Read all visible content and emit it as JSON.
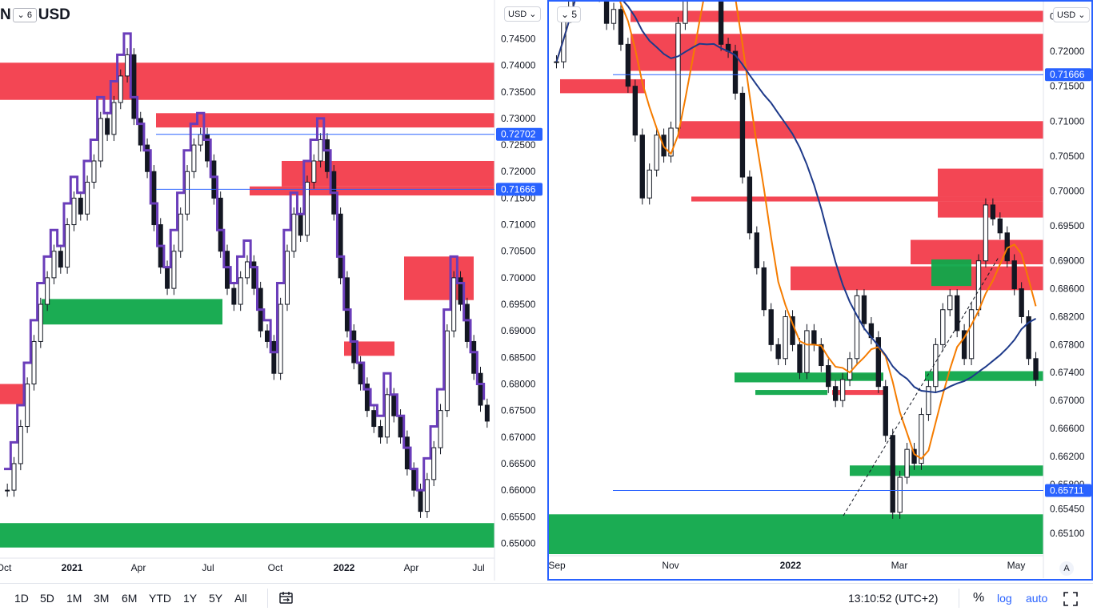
{
  "left_chart": {
    "symbol_text": "N",
    "symbol_suffix": "USD",
    "interval_badge": "6",
    "currency_chip": "USD",
    "price_ticks": [
      "0.74500",
      "0.74000",
      "0.73500",
      "0.73000",
      "0.72500",
      "0.72000",
      "0.71500",
      "0.71000",
      "0.70500",
      "0.70000",
      "0.69500",
      "0.69000",
      "0.68500",
      "0.68000",
      "0.67500",
      "0.67000",
      "0.66500",
      "0.66000",
      "0.65500",
      "0.65000"
    ],
    "time_ticks": [
      "Oct",
      "2021",
      "Apr",
      "Jul",
      "Oct",
      "2022",
      "Apr",
      "Jul"
    ],
    "price_labels": [
      {
        "text": "0.72702",
        "value": 0.72702,
        "color": "#2962ff"
      },
      {
        "text": "0.71666",
        "value": 0.71666,
        "color": "#2962ff"
      }
    ]
  },
  "right_chart": {
    "interval_badge": "5",
    "currency_chip": "USD",
    "price_ticks": [
      "0.72500",
      "0.72000",
      "0.71500",
      "0.71000",
      "0.70500",
      "0.70000",
      "0.69500",
      "0.69000",
      "0.68600",
      "0.68200",
      "0.67800",
      "0.67400",
      "0.67000",
      "0.66600",
      "0.66200",
      "0.65800",
      "0.65450",
      "0.65100"
    ],
    "time_ticks": [
      "Sep",
      "Nov",
      "2022",
      "Mar",
      "May"
    ],
    "price_labels": [
      {
        "text": "0.71666",
        "value": 0.71666,
        "color": "#2962ff"
      },
      {
        "text": "0.65711",
        "value": 0.65711,
        "color": "#2962ff"
      }
    ],
    "auto_label": "A"
  },
  "toolbar": {
    "ranges": [
      "1D",
      "5D",
      "1M",
      "3M",
      "6M",
      "YTD",
      "1Y",
      "5Y",
      "All"
    ],
    "clock": "13:10:52 (UTC+2)",
    "percent": "%",
    "log": "log",
    "auto": "auto"
  },
  "chart_data": [
    {
      "type": "candlestick",
      "ylim": [
        0.6475,
        0.7505
      ],
      "x_labels": [
        "Oct",
        "2021",
        "Apr",
        "Jul",
        "Oct",
        "2022",
        "Apr",
        "Jul"
      ],
      "zones": [
        {
          "kind": "supply",
          "from": 0.7405,
          "to": 0.7335
        },
        {
          "kind": "supply",
          "from": 0.731,
          "to": 0.7283
        },
        {
          "kind": "supply",
          "from": 0.722,
          "to": 0.7172
        },
        {
          "kind": "supply",
          "from": 0.7172,
          "to": 0.7155
        },
        {
          "kind": "supply",
          "from": 0.704,
          "to": 0.6958
        },
        {
          "kind": "supply",
          "from": 0.688,
          "to": 0.6853
        },
        {
          "kind": "supply",
          "from": 0.68,
          "to": 0.6762
        },
        {
          "kind": "demand",
          "from": 0.696,
          "to": 0.6912
        },
        {
          "kind": "demand",
          "from": 0.6538,
          "to": 0.6492
        }
      ],
      "closes": [
        0.66,
        0.665,
        0.672,
        0.68,
        0.688,
        0.695,
        0.7,
        0.705,
        0.702,
        0.71,
        0.715,
        0.712,
        0.718,
        0.722,
        0.73,
        0.727,
        0.733,
        0.738,
        0.742,
        0.73,
        0.725,
        0.72,
        0.71,
        0.702,
        0.698,
        0.705,
        0.712,
        0.72,
        0.725,
        0.727,
        0.722,
        0.715,
        0.705,
        0.698,
        0.695,
        0.7,
        0.703,
        0.698,
        0.69,
        0.688,
        0.682,
        0.695,
        0.705,
        0.712,
        0.708,
        0.718,
        0.722,
        0.726,
        0.72,
        0.712,
        0.7,
        0.69,
        0.684,
        0.68,
        0.675,
        0.672,
        0.67,
        0.678,
        0.674,
        0.67,
        0.664,
        0.66,
        0.656,
        0.662,
        0.668,
        0.675,
        0.69,
        0.7,
        0.695,
        0.688,
        0.682,
        0.676,
        0.673
      ]
    },
    {
      "type": "candlestick",
      "ylim": [
        0.648,
        0.7262
      ],
      "x_labels": [
        "Sep",
        "Nov",
        "2022",
        "Mar",
        "May"
      ],
      "series": [
        {
          "name": "",
          "kind": "moving-average"
        },
        {
          "name": "",
          "kind": "moving-average"
        }
      ],
      "zones": [
        {
          "kind": "supply",
          "from": 0.7258,
          "to": 0.7242
        },
        {
          "kind": "supply",
          "from": 0.7225,
          "to": 0.7172
        },
        {
          "kind": "supply",
          "from": 0.716,
          "to": 0.714
        },
        {
          "kind": "supply",
          "from": 0.71,
          "to": 0.7075
        },
        {
          "kind": "supply",
          "from": 0.7032,
          "to": 0.6992
        },
        {
          "kind": "supply",
          "from": 0.6992,
          "to": 0.6985
        },
        {
          "kind": "supply",
          "from": 0.6985,
          "to": 0.6962
        },
        {
          "kind": "supply",
          "from": 0.693,
          "to": 0.6895
        },
        {
          "kind": "supply",
          "from": 0.6892,
          "to": 0.6858
        },
        {
          "kind": "supply",
          "from": 0.6738,
          "to": 0.673
        },
        {
          "kind": "supply",
          "from": 0.6715,
          "to": 0.6708
        },
        {
          "kind": "demand",
          "from": 0.6902,
          "to": 0.6864
        },
        {
          "kind": "demand",
          "from": 0.674,
          "to": 0.6726
        },
        {
          "kind": "demand",
          "from": 0.6742,
          "to": 0.6728
        },
        {
          "kind": "demand",
          "from": 0.6715,
          "to": 0.6708
        },
        {
          "kind": "demand",
          "from": 0.674,
          "to": 0.6728
        },
        {
          "kind": "demand",
          "from": 0.6607,
          "to": 0.6592
        },
        {
          "kind": "demand",
          "from": 0.6537,
          "to": 0.648
        }
      ],
      "closes": [
        0.7185,
        0.725,
        0.732,
        0.7395,
        0.73,
        0.732,
        0.728,
        0.724,
        0.726,
        0.721,
        0.715,
        0.708,
        0.699,
        0.703,
        0.708,
        0.705,
        0.709,
        0.724,
        0.73,
        0.736,
        0.742,
        0.738,
        0.731,
        0.721,
        0.72,
        0.714,
        0.702,
        0.694,
        0.689,
        0.683,
        0.678,
        0.676,
        0.682,
        0.678,
        0.674,
        0.68,
        0.678,
        0.675,
        0.672,
        0.67,
        0.673,
        0.676,
        0.685,
        0.681,
        0.679,
        0.672,
        0.665,
        0.654,
        0.659,
        0.663,
        0.661,
        0.668,
        0.672,
        0.678,
        0.683,
        0.685,
        0.68,
        0.676,
        0.683,
        0.69,
        0.698,
        0.696,
        0.694,
        0.69,
        0.686,
        0.682,
        0.676,
        0.673
      ]
    }
  ]
}
